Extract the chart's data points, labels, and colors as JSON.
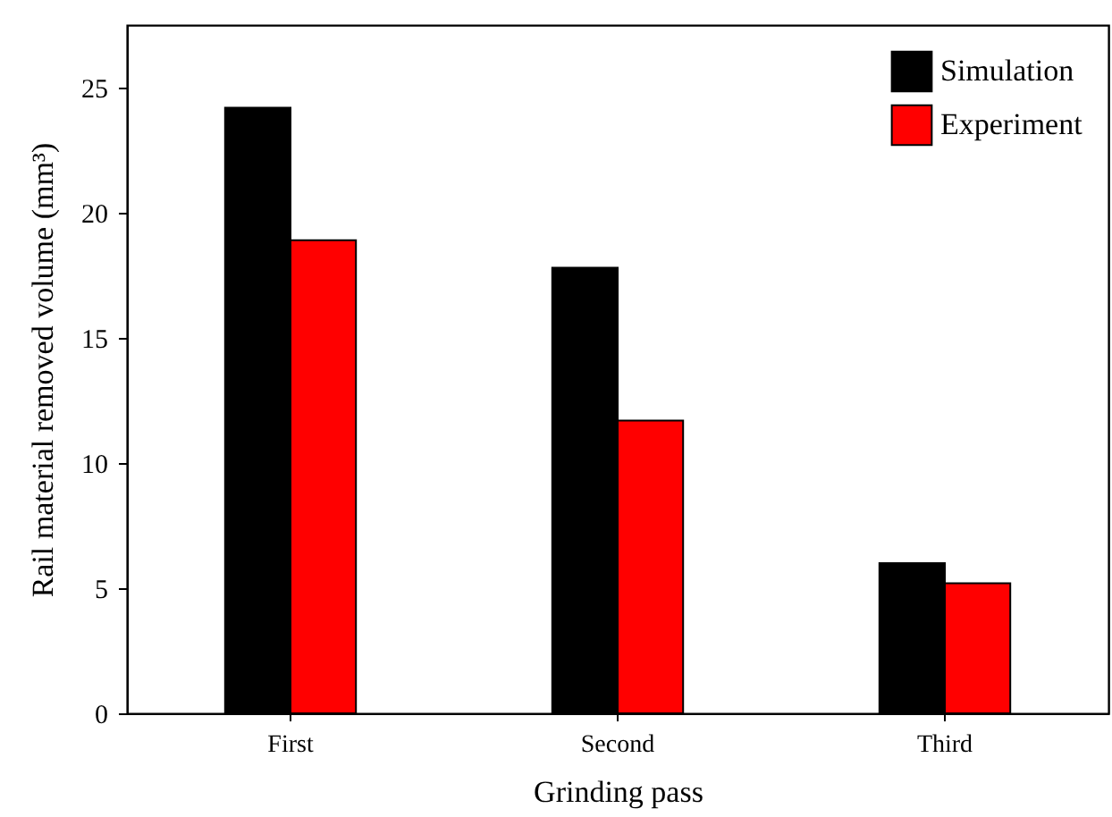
{
  "chart_data": {
    "type": "bar",
    "xlabel": "Grinding pass",
    "ylabel": "Rail material removed volume (mm³)",
    "categories": [
      "First",
      "Second",
      "Third"
    ],
    "series": [
      {
        "name": "Simulation",
        "color": "#000000",
        "values": [
          24.2,
          17.8,
          6.0
        ]
      },
      {
        "name": "Experiment",
        "color": "#ff0000",
        "values": [
          18.9,
          11.7,
          5.2
        ]
      }
    ],
    "ylim": [
      0,
      27.5
    ],
    "yticks": [
      0,
      5,
      10,
      15,
      20,
      25
    ],
    "legend": "top right"
  }
}
